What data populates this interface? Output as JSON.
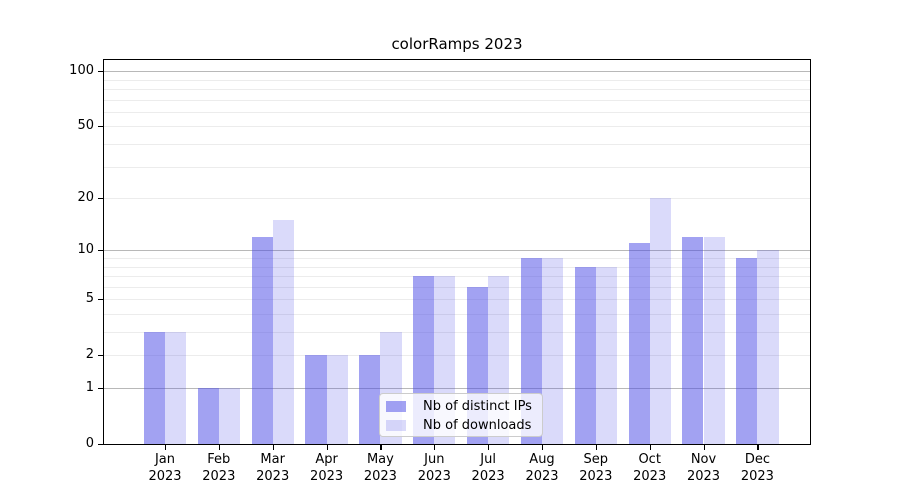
{
  "chart_data": {
    "type": "bar",
    "title": "colorRamps 2023",
    "categories": [
      "Jan 2023",
      "Feb 2023",
      "Mar 2023",
      "Apr 2023",
      "May 2023",
      "Jun 2023",
      "Jul 2023",
      "Aug 2023",
      "Sep 2023",
      "Oct 2023",
      "Nov 2023",
      "Dec 2023"
    ],
    "series": [
      {
        "name": "Nb of distinct IPs",
        "values": [
          3,
          1,
          12,
          2,
          2,
          7,
          6,
          9,
          8,
          11,
          12,
          9
        ],
        "fill": "rgba(70,70,230,0.5)",
        "color_hex": "#a6a6f4"
      },
      {
        "name": "Nb of downloads",
        "values": [
          3,
          1,
          15,
          2,
          3,
          7,
          7,
          9,
          8,
          20,
          12,
          10
        ],
        "fill": "rgba(70,70,230,0.2)",
        "color_hex": "#dadaf8"
      }
    ],
    "xlabel": "",
    "ylabel": "",
    "yscale": "symlog",
    "ylim": [
      0,
      115
    ],
    "y_ticks": [
      100,
      50,
      20,
      10,
      5,
      2,
      1,
      0
    ],
    "grid": {
      "on": true,
      "major": [
        1,
        10,
        100
      ],
      "minor": [
        2,
        3,
        4,
        5,
        6,
        7,
        8,
        9,
        20,
        30,
        40,
        50,
        60,
        70,
        80,
        90
      ]
    },
    "legend_position": "lower center inside axes"
  },
  "colors": {
    "grid_major": "#b8b8b8",
    "grid_minor": "#ececec",
    "axis": "#000000",
    "text": "#000000",
    "legend_border": "#cccccc",
    "legend_bg": "rgba(255,255,255,0.8)"
  }
}
